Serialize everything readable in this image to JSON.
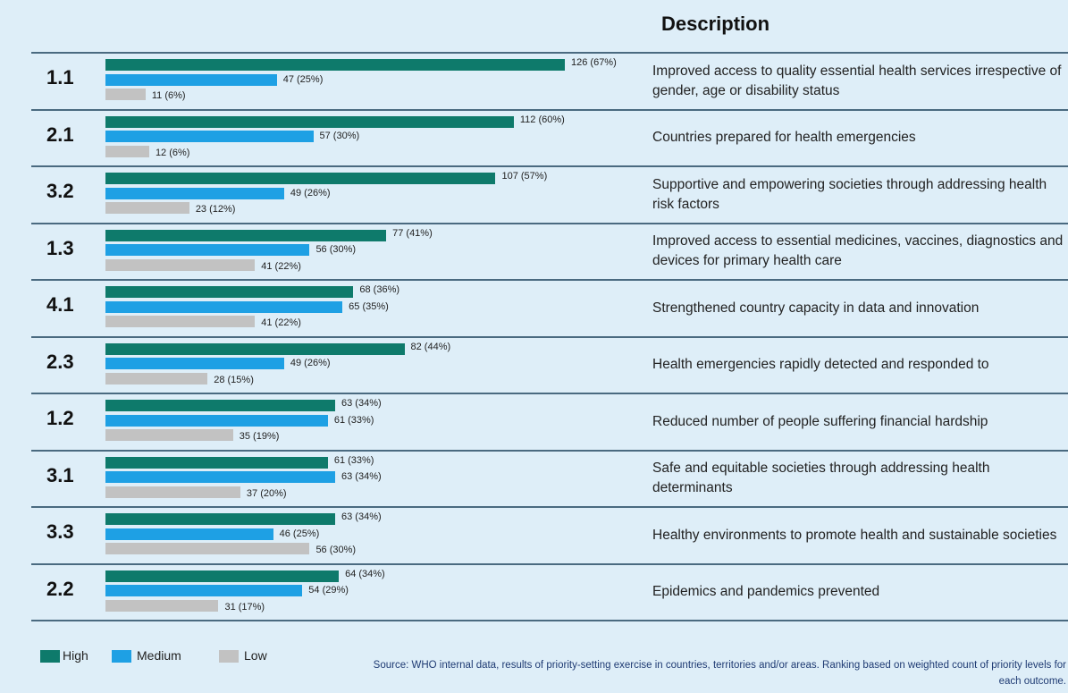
{
  "chart_data": {
    "type": "bar",
    "orientation": "horizontal",
    "description_header": "Description",
    "categories": [
      "1.1",
      "2.1",
      "3.2",
      "1.3",
      "4.1",
      "2.3",
      "1.2",
      "3.1",
      "3.3",
      "2.2"
    ],
    "descriptions": [
      "Improved access to quality essential health services irrespective of gender, age or disability status",
      "Countries prepared for health emergencies",
      "Supportive and empowering societies through addressing health risk factors",
      "Improved access to essential medicines, vaccines, diagnostics and devices for primary health care",
      "Strengthened country capacity in data and innovation",
      "Health emergencies rapidly detected and responded to",
      "Reduced number of people suffering financial hardship",
      "Safe and equitable societies through addressing health determinants",
      "Healthy environments to promote health and sustainable societies",
      "Epidemics and pandemics prevented"
    ],
    "series": [
      {
        "name": "High",
        "color": "#0e7a6b",
        "values": [
          126,
          112,
          107,
          77,
          68,
          82,
          63,
          61,
          63,
          64
        ],
        "value_labels": [
          "126 (67%)",
          "112 (60%)",
          "107 (57%)",
          "77 (41%)",
          "68 (36%)",
          "82 (44%)",
          "63 (34%)",
          "61 (33%)",
          "63 (34%)",
          "64 (34%)"
        ]
      },
      {
        "name": "Medium",
        "color": "#1ea0e4",
        "values": [
          47,
          57,
          49,
          56,
          65,
          49,
          61,
          63,
          46,
          54
        ],
        "value_labels": [
          "47 (25%)",
          "57 (30%)",
          "49 (26%)",
          "56 (30%)",
          "65 (35%)",
          "49 (26%)",
          "61 (33%)",
          "63 (34%)",
          "46 (25%)",
          "54 (29%)"
        ]
      },
      {
        "name": "Low",
        "color": "#c2c2c2",
        "values": [
          11,
          12,
          23,
          41,
          41,
          28,
          35,
          37,
          56,
          31
        ],
        "value_labels": [
          "11 (6%)",
          "12 (6%)",
          "23 (12%)",
          "41 (22%)",
          "41 (22%)",
          "28 (15%)",
          "35 (19%)",
          "37 (20%)",
          "56 (30%)",
          "31 (17%)"
        ]
      }
    ],
    "source": "Source: WHO internal data, results of priority-setting exercise in countries, territories and/or areas. Ranking based on weighted count of priority levels for each outcome."
  }
}
